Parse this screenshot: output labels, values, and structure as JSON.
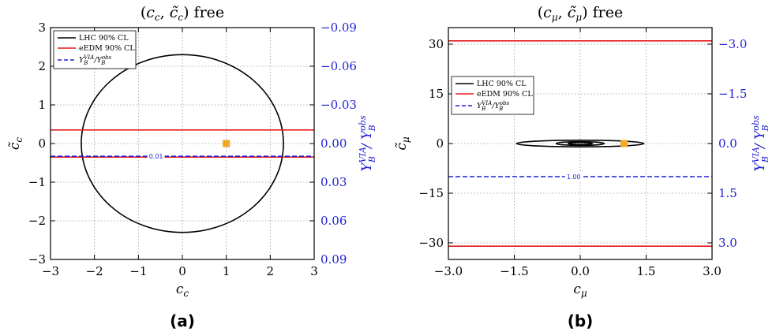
{
  "chart_data": [
    {
      "type": "line",
      "title": "(c_c, c̃_c) free",
      "panel_label": "(a)",
      "xlabel": "c_c",
      "ylabel": "c̃_c",
      "y2label": "Y_B^VIA / Y_B^obs",
      "xlim": [
        -3,
        3
      ],
      "ylim": [
        -3,
        3
      ],
      "y2lim": [
        0.09,
        -0.09
      ],
      "x_ticks": [
        "−3",
        "−2",
        "−1",
        "0",
        "1",
        "2",
        "3"
      ],
      "y_ticks": [
        "−3",
        "−2",
        "−1",
        "0",
        "1",
        "2",
        "3"
      ],
      "y2_ticks": [
        "0.09",
        "0.06",
        "0.03",
        "0.00",
        "−0.03",
        "−0.06",
        "−0.09"
      ],
      "grid": true,
      "legend_position": "upper-left",
      "legend": [
        "LHC 90% CL",
        "eEDM 90% CL",
        "Y_B^VIA / Y_B^obs"
      ],
      "series": [
        {
          "name": "LHC 90% CL",
          "kind": "ellipse",
          "color": "#000000",
          "center": [
            0,
            0
          ],
          "rx": 2.3,
          "ry": 2.3
        },
        {
          "name": "eEDM 90% CL",
          "kind": "hlines",
          "color": "#e41a1c",
          "y": [
            0.35,
            -0.35
          ]
        },
        {
          "name": "Y_B^VIA / Y_B^obs",
          "kind": "hline-dashed",
          "color": "#1f1fd6",
          "y": -0.33,
          "contour_label": "0.01",
          "label_x": -0.6
        }
      ],
      "points": [
        {
          "x": 1,
          "y": 0,
          "color": "#f5a623"
        }
      ]
    },
    {
      "type": "line",
      "title": "(c_μ, c̃_μ) free",
      "panel_label": "(b)",
      "xlabel": "c_μ",
      "ylabel": "c̃_μ",
      "y2label": "Y_B^VIA / Y_B^obs",
      "xlim": [
        -3,
        3
      ],
      "ylim": [
        -35,
        35
      ],
      "y2lim": [
        3.5,
        -3.5
      ],
      "x_ticks": [
        "−3.0",
        "−1.5",
        "0.0",
        "1.5",
        "3.0"
      ],
      "y_ticks": [
        "−30",
        "−15",
        "0",
        "15",
        "30"
      ],
      "y2_ticks": [
        "3.0",
        "1.5",
        "0.0",
        "−1.5",
        "−3.0"
      ],
      "grid": true,
      "legend_position": "center-left",
      "legend": [
        "LHC 90% CL",
        "eEDM 90% CL",
        "Y_B^VIA / Y_B^obs"
      ],
      "series": [
        {
          "name": "LHC 90% CL",
          "kind": "ellipses",
          "color": "#000000",
          "center": [
            0,
            0
          ],
          "shapes": [
            [
              1.45,
              1.0
            ],
            [
              0.55,
              0.55
            ],
            [
              0.28,
              0.3
            ]
          ]
        },
        {
          "name": "eEDM 90% CL",
          "kind": "hlines",
          "color": "#e41a1c",
          "y": [
            31,
            -31
          ]
        },
        {
          "name": "Y_B^VIA / Y_B^obs",
          "kind": "hline-dashed",
          "color": "#1f1fd6",
          "y": -10,
          "contour_label": "1.00",
          "label_x": -0.15
        }
      ],
      "points": [
        {
          "x": 1,
          "y": 0,
          "color": "#f5a623"
        }
      ]
    }
  ]
}
